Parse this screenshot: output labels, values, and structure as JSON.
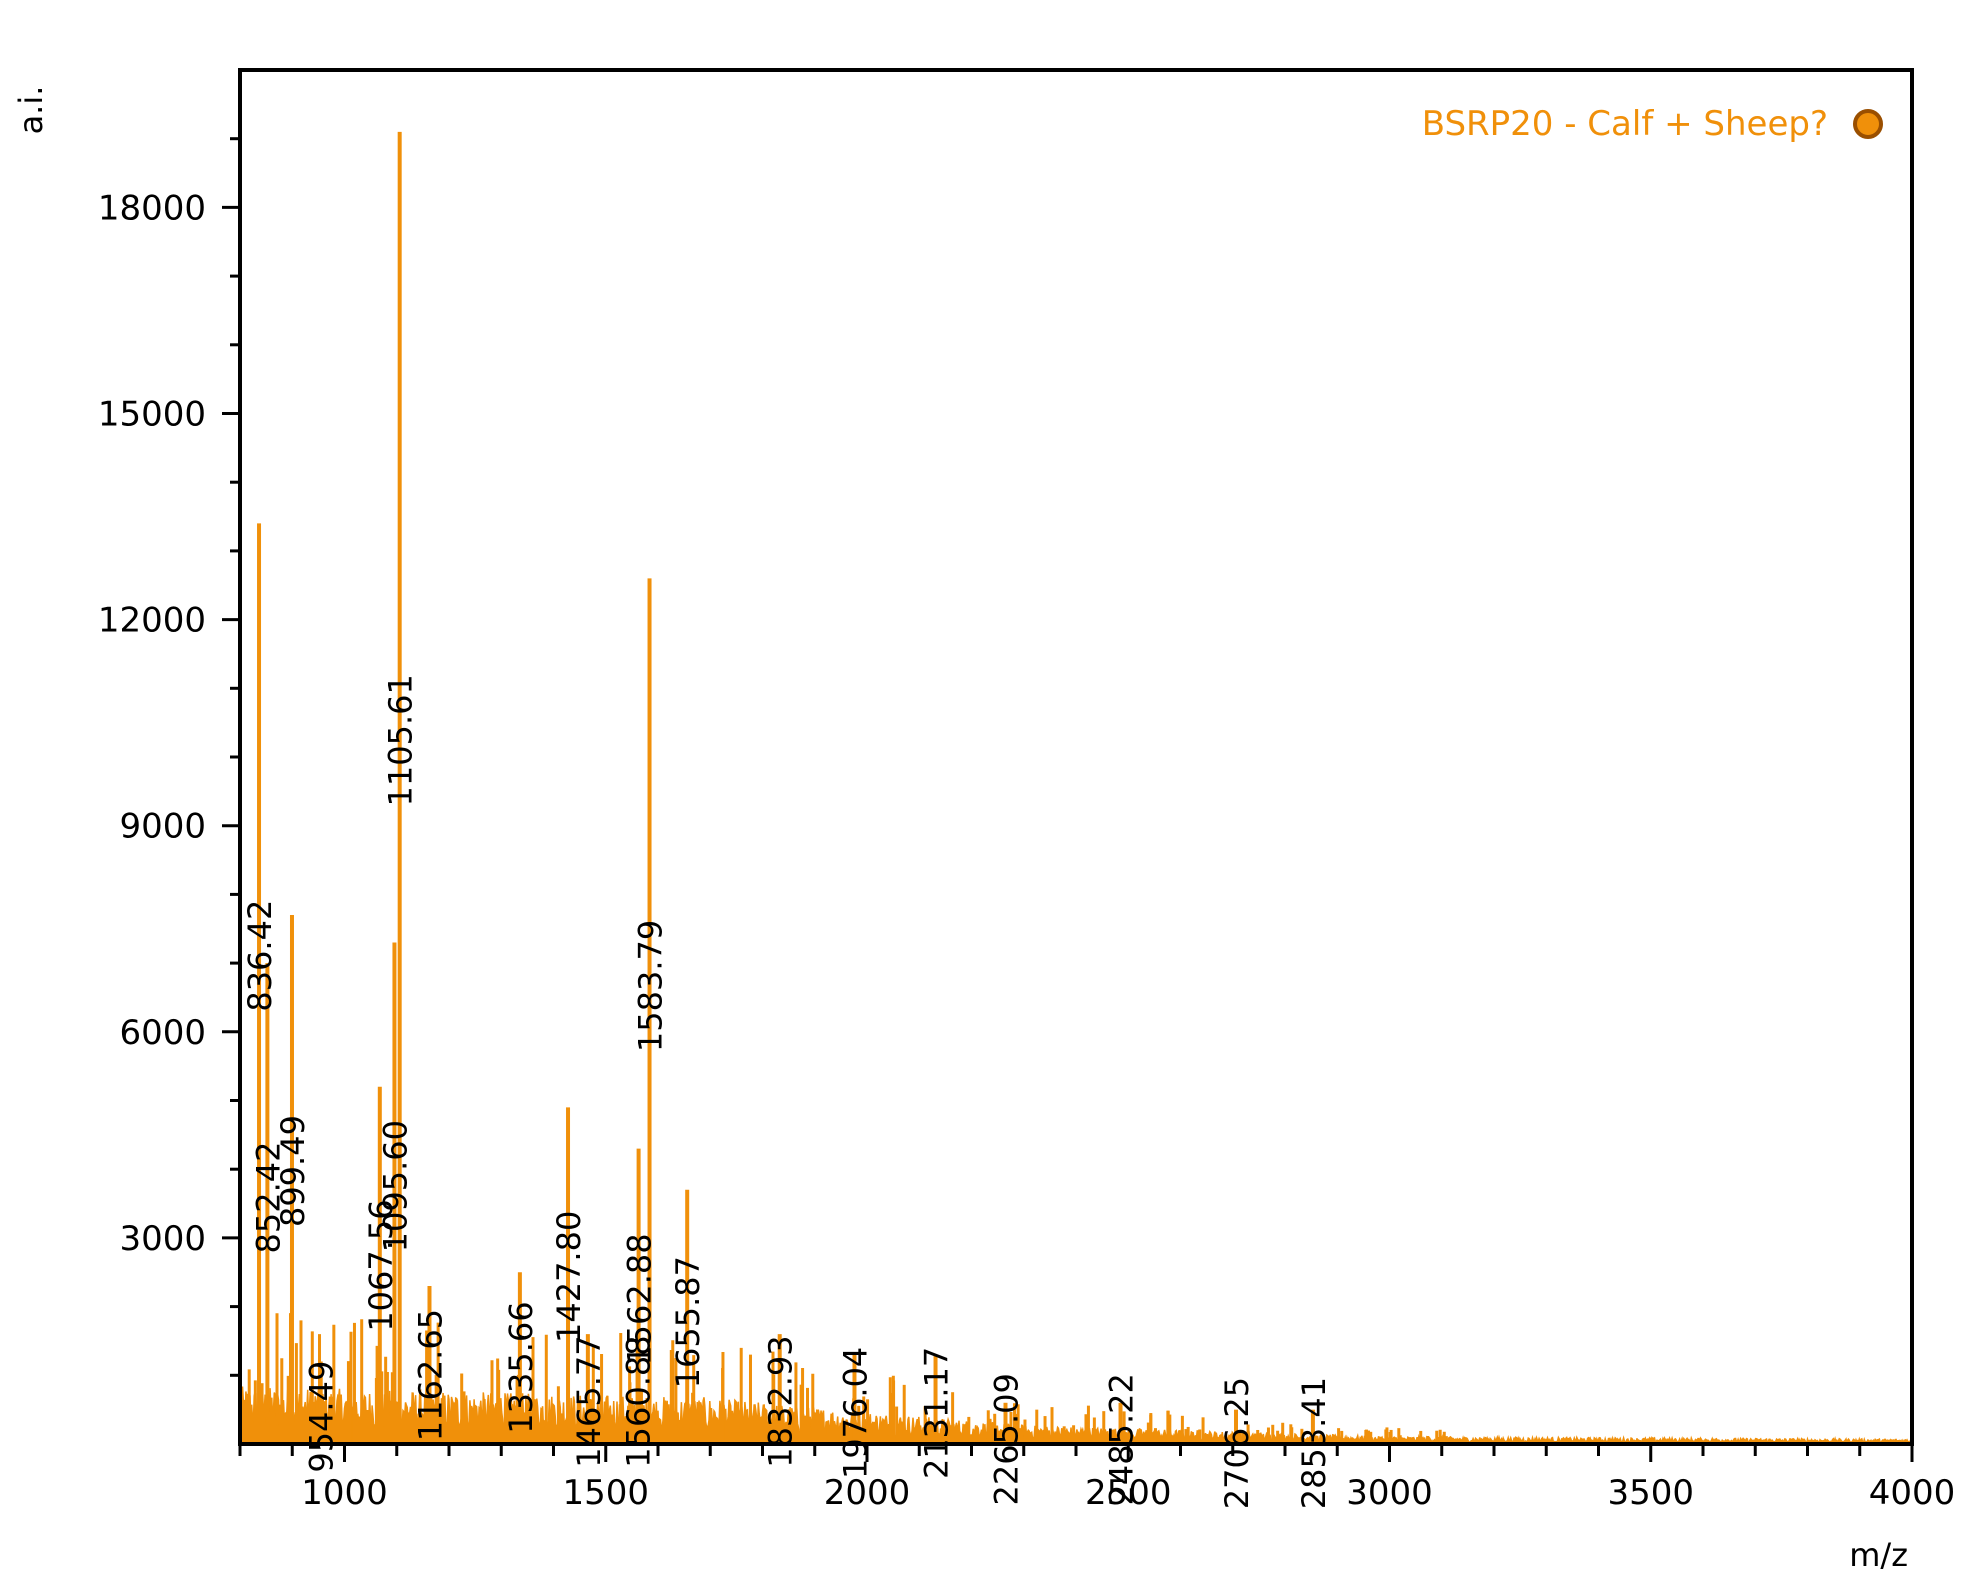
{
  "chart_data": {
    "type": "line",
    "title": "",
    "xlabel": "m/z",
    "ylabel": "a.i.",
    "xlim": [
      800,
      4000
    ],
    "ylim": [
      0,
      20000
    ],
    "x_ticks": [
      1000,
      1500,
      2000,
      2500,
      3000,
      3500,
      4000
    ],
    "x_tick_labels": [
      "1000",
      "1500",
      "2000",
      "2500",
      "3000",
      "3500",
      "4000"
    ],
    "y_ticks": [
      3000,
      6000,
      9000,
      12000,
      15000,
      18000
    ],
    "y_tick_labels": [
      "3000",
      "6000",
      "9000",
      "12000",
      "15000",
      "18000"
    ],
    "grid": false,
    "legend_position": "top-right",
    "colors": {
      "series": "#f0900a",
      "marker_fill": "#f0900a",
      "marker_edge": "#9a4f00",
      "axis": "#000000"
    },
    "series": [
      {
        "name": "BSRP20 - Calf + Sheep?"
      }
    ],
    "peaks": [
      {
        "mz": 836.42,
        "intensity": 13400,
        "label": "836.42"
      },
      {
        "mz": 852.42,
        "intensity": 7000,
        "label": "852.42"
      },
      {
        "mz": 899.49,
        "intensity": 7700,
        "label": "899.49"
      },
      {
        "mz": 954.49,
        "intensity": 1200,
        "label": "954.49"
      },
      {
        "mz": 1067.56,
        "intensity": 5200,
        "label": "1067.56"
      },
      {
        "mz": 1095.6,
        "intensity": 7300,
        "label": "1095.60"
      },
      {
        "mz": 1105.61,
        "intensity": 19100,
        "label": "1105.61"
      },
      {
        "mz": 1162.65,
        "intensity": 2300,
        "label": "1162.65"
      },
      {
        "mz": 1335.66,
        "intensity": 2500,
        "label": "1335.66"
      },
      {
        "mz": 1427.8,
        "intensity": 4900,
        "label": "1427.80"
      },
      {
        "mz": 1465.77,
        "intensity": 1600,
        "label": "1465.77"
      },
      {
        "mz": 1560.88,
        "intensity": 1600,
        "label": "1560.88"
      },
      {
        "mz": 1562.88,
        "intensity": 4300,
        "label": "1562.88"
      },
      {
        "mz": 1583.79,
        "intensity": 12600,
        "label": "1583.79"
      },
      {
        "mz": 1655.87,
        "intensity": 3700,
        "label": "1655.87"
      },
      {
        "mz": 1832.93,
        "intensity": 1600,
        "label": "1832.93"
      },
      {
        "mz": 1976.04,
        "intensity": 1300,
        "label": "1976.04"
      },
      {
        "mz": 2131.17,
        "intensity": 1300,
        "label": "2131.17"
      },
      {
        "mz": 2265.09,
        "intensity": 600,
        "label": "2265.09"
      },
      {
        "mz": 2485.22,
        "intensity": 600,
        "label": "2485.22"
      },
      {
        "mz": 2706.25,
        "intensity": 500,
        "label": "2706.25"
      },
      {
        "mz": 2853.41,
        "intensity": 500,
        "label": "2853.41"
      }
    ]
  }
}
